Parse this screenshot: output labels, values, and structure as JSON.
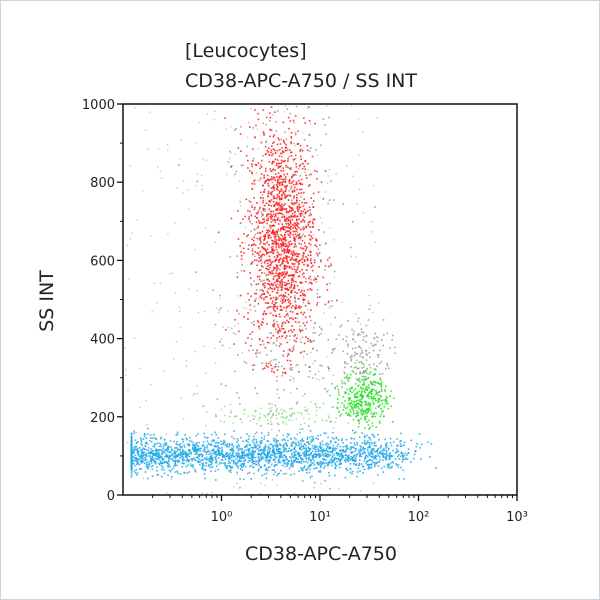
{
  "chart_data": {
    "type": "scatter",
    "title": "[Leucocytes]",
    "subtitle": "CD38-APC-A750 / SS INT",
    "xlabel": "CD38-APC-A750",
    "ylabel": "SS INT",
    "x_scale": "log",
    "xlim": [
      0.1,
      1000
    ],
    "ylim": [
      0,
      1000
    ],
    "x_ticks": [
      1,
      10,
      100,
      1000
    ],
    "x_tick_labels": [
      "10⁰",
      "10¹",
      "10²",
      "10³"
    ],
    "y_ticks": [
      0,
      200,
      400,
      600,
      800,
      1000
    ],
    "y_tick_labels": [
      "0",
      "200",
      "400",
      "600",
      "800",
      "1000"
    ],
    "grid": false,
    "populations": [
      {
        "color": "#ff1a1a",
        "x_center": 4,
        "x_log_sd": 0.17,
        "y_center": 650,
        "y_sd": 150,
        "y_range": [
          310,
          1000
        ],
        "count": 1500
      },
      {
        "color": "#1ea7e8",
        "x_center": 2,
        "x_log_sd": 0.7,
        "y_center": 105,
        "y_sd": 22,
        "x_range": [
          0.12,
          220
        ],
        "y_range": [
          40,
          180
        ],
        "count": 2200
      },
      {
        "color": "#22e01e",
        "x_center": 28,
        "x_log_sd": 0.12,
        "y_center": 250,
        "y_sd": 35,
        "count": 350
      },
      {
        "color": "#8fe58a",
        "x_center": 4,
        "x_log_sd": 0.35,
        "y_center": 205,
        "y_sd": 15,
        "count": 90
      },
      {
        "color": "#9a9a9a",
        "x_center": 4,
        "x_log_sd": 0.3,
        "y_center": 500,
        "y_sd": 300,
        "count": 500
      },
      {
        "color": "#9a9a9a",
        "x_center": 25,
        "x_log_sd": 0.15,
        "y_center": 360,
        "y_sd": 50,
        "count": 150
      }
    ]
  }
}
